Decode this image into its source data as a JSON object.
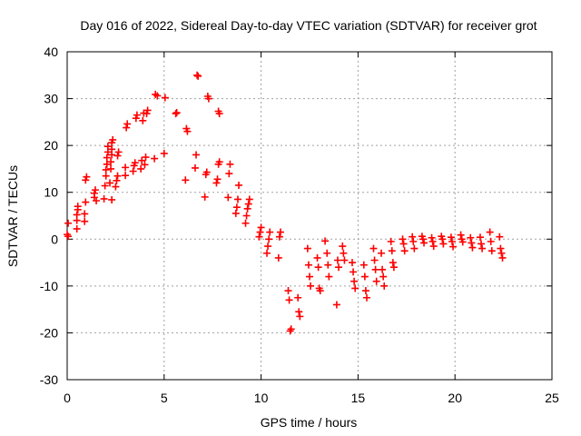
{
  "chart_data": {
    "type": "scatter",
    "title": "Day 016 of 2022, Sidereal Day-to-day VTEC variation (SDTVAR) for receiver grot",
    "xlabel": "GPS time / hours",
    "ylabel": "SDTVAR / TECUs",
    "xlim": [
      0,
      25
    ],
    "ylim": [
      -30,
      40
    ],
    "xticks": [
      "0",
      "5",
      "10",
      "15",
      "20",
      "25"
    ],
    "yticks": [
      "-30",
      "-20",
      "-10",
      "0",
      "10",
      "20",
      "30",
      "40"
    ],
    "grid": true,
    "marker": "+",
    "series": [
      {
        "name": "SDTVAR",
        "color": "#ff0000",
        "points": [
          [
            0.0,
            1.0
          ],
          [
            0.05,
            0.6
          ],
          [
            0.05,
            3.4
          ],
          [
            0.5,
            2.2
          ],
          [
            0.5,
            4.0
          ],
          [
            0.5,
            5.2
          ],
          [
            0.55,
            6.3
          ],
          [
            0.55,
            7.0
          ],
          [
            0.9,
            3.8
          ],
          [
            0.9,
            5.4
          ],
          [
            0.95,
            7.9
          ],
          [
            0.95,
            12.6
          ],
          [
            1.0,
            13.3
          ],
          [
            1.4,
            8.9
          ],
          [
            1.4,
            9.8
          ],
          [
            1.45,
            10.5
          ],
          [
            1.5,
            8.2
          ],
          [
            1.9,
            8.6
          ],
          [
            1.95,
            11.4
          ],
          [
            2.0,
            13.5
          ],
          [
            2.0,
            14.8
          ],
          [
            2.05,
            16.0
          ],
          [
            2.05,
            17.4
          ],
          [
            2.1,
            18.6
          ],
          [
            2.1,
            19.8
          ],
          [
            2.2,
            12.0
          ],
          [
            2.25,
            15.0
          ],
          [
            2.25,
            16.5
          ],
          [
            2.3,
            18.0
          ],
          [
            2.3,
            19.2
          ],
          [
            2.3,
            20.6
          ],
          [
            2.35,
            21.2
          ],
          [
            2.3,
            8.4
          ],
          [
            2.5,
            11.2
          ],
          [
            2.55,
            12.5
          ],
          [
            2.6,
            13.5
          ],
          [
            2.6,
            17.8
          ],
          [
            2.65,
            18.6
          ],
          [
            3.0,
            13.6
          ],
          [
            3.0,
            15.3
          ],
          [
            3.05,
            23.8
          ],
          [
            3.1,
            24.6
          ],
          [
            3.4,
            14.5
          ],
          [
            3.45,
            15.7
          ],
          [
            3.5,
            16.3
          ],
          [
            3.55,
            25.8
          ],
          [
            3.6,
            26.5
          ],
          [
            3.8,
            15.0
          ],
          [
            3.85,
            16.8
          ],
          [
            3.9,
            25.3
          ],
          [
            3.95,
            26.9
          ],
          [
            4.0,
            15.9
          ],
          [
            4.05,
            17.5
          ],
          [
            4.1,
            26.8
          ],
          [
            4.15,
            27.5
          ],
          [
            4.5,
            17.2
          ],
          [
            4.55,
            30.9
          ],
          [
            4.65,
            30.6
          ],
          [
            5.0,
            18.3
          ],
          [
            5.05,
            30.2
          ],
          [
            5.6,
            26.8
          ],
          [
            5.65,
            27.0
          ],
          [
            6.1,
            12.6
          ],
          [
            6.15,
            23.6
          ],
          [
            6.2,
            23.0
          ],
          [
            6.6,
            15.2
          ],
          [
            6.65,
            18.0
          ],
          [
            6.7,
            35.0
          ],
          [
            6.75,
            34.8
          ],
          [
            7.1,
            9.0
          ],
          [
            7.15,
            13.8
          ],
          [
            7.2,
            14.3
          ],
          [
            7.25,
            30.5
          ],
          [
            7.3,
            30.0
          ],
          [
            7.7,
            12.0
          ],
          [
            7.75,
            12.8
          ],
          [
            7.8,
            16.0
          ],
          [
            7.85,
            16.5
          ],
          [
            7.8,
            27.3
          ],
          [
            7.85,
            26.8
          ],
          [
            8.3,
            8.9
          ],
          [
            8.35,
            14.0
          ],
          [
            8.4,
            16.0
          ],
          [
            8.7,
            5.5
          ],
          [
            8.75,
            6.8
          ],
          [
            8.8,
            8.5
          ],
          [
            8.85,
            11.5
          ],
          [
            9.2,
            3.4
          ],
          [
            9.25,
            5.0
          ],
          [
            9.3,
            6.5
          ],
          [
            9.35,
            7.5
          ],
          [
            9.4,
            8.5
          ],
          [
            9.9,
            0.5
          ],
          [
            9.95,
            1.5
          ],
          [
            10.0,
            2.5
          ],
          [
            10.3,
            -3.0
          ],
          [
            10.35,
            -1.5
          ],
          [
            10.4,
            0.0
          ],
          [
            10.45,
            1.5
          ],
          [
            10.9,
            -4.0
          ],
          [
            10.95,
            0.5
          ],
          [
            11.0,
            1.5
          ],
          [
            11.4,
            -11.0
          ],
          [
            11.45,
            -13.0
          ],
          [
            11.5,
            -19.6
          ],
          [
            11.55,
            -19.2
          ],
          [
            11.9,
            -12.5
          ],
          [
            11.95,
            -15.5
          ],
          [
            12.0,
            -16.5
          ],
          [
            12.4,
            -2.0
          ],
          [
            12.45,
            -5.5
          ],
          [
            12.5,
            -8.0
          ],
          [
            12.55,
            -10.0
          ],
          [
            12.9,
            -4.0
          ],
          [
            12.95,
            -6.0
          ],
          [
            13.0,
            -10.5
          ],
          [
            13.05,
            -11.0
          ],
          [
            13.3,
            -0.4
          ],
          [
            13.4,
            -3.0
          ],
          [
            13.45,
            -5.5
          ],
          [
            13.5,
            -8.0
          ],
          [
            13.9,
            -14.0
          ],
          [
            13.95,
            -4.5
          ],
          [
            14.0,
            -6.0
          ],
          [
            14.2,
            -1.5
          ],
          [
            14.25,
            -3.0
          ],
          [
            14.3,
            -4.5
          ],
          [
            14.7,
            -5.0
          ],
          [
            14.75,
            -7.0
          ],
          [
            14.8,
            -9.0
          ],
          [
            14.85,
            -10.5
          ],
          [
            15.3,
            -5.5
          ],
          [
            15.35,
            -8.0
          ],
          [
            15.4,
            -11.0
          ],
          [
            15.45,
            -12.5
          ],
          [
            15.8,
            -2.0
          ],
          [
            15.85,
            -4.5
          ],
          [
            15.9,
            -6.5
          ],
          [
            15.95,
            -9.0
          ],
          [
            16.2,
            -3.0
          ],
          [
            16.25,
            -6.5
          ],
          [
            16.3,
            -8.0
          ],
          [
            16.35,
            -10.0
          ],
          [
            16.7,
            -0.5
          ],
          [
            16.75,
            -2.5
          ],
          [
            16.8,
            -5.0
          ],
          [
            16.85,
            -6.0
          ],
          [
            17.3,
            0.0
          ],
          [
            17.35,
            -1.0
          ],
          [
            17.4,
            -2.5
          ],
          [
            17.8,
            0.5
          ],
          [
            17.85,
            -0.5
          ],
          [
            17.9,
            -2.0
          ],
          [
            18.3,
            0.6
          ],
          [
            18.35,
            0.0
          ],
          [
            18.4,
            -0.8
          ],
          [
            18.8,
            0.3
          ],
          [
            18.85,
            -0.5
          ],
          [
            18.9,
            -1.5
          ],
          [
            19.3,
            0.6
          ],
          [
            19.35,
            0.0
          ],
          [
            19.4,
            -1.0
          ],
          [
            19.8,
            0.4
          ],
          [
            19.85,
            -0.5
          ],
          [
            19.9,
            -1.6
          ],
          [
            20.3,
            0.9
          ],
          [
            20.35,
            0.0
          ],
          [
            20.4,
            -0.6
          ],
          [
            20.8,
            0.3
          ],
          [
            20.85,
            -0.8
          ],
          [
            20.9,
            -1.8
          ],
          [
            21.3,
            0.4
          ],
          [
            21.35,
            -1.0
          ],
          [
            21.4,
            -2.0
          ],
          [
            21.8,
            1.5
          ],
          [
            21.85,
            -0.5
          ],
          [
            21.9,
            -2.5
          ],
          [
            22.3,
            0.5
          ],
          [
            22.35,
            -2.0
          ],
          [
            22.4,
            -3.0
          ],
          [
            22.45,
            -4.0
          ]
        ]
      }
    ]
  }
}
